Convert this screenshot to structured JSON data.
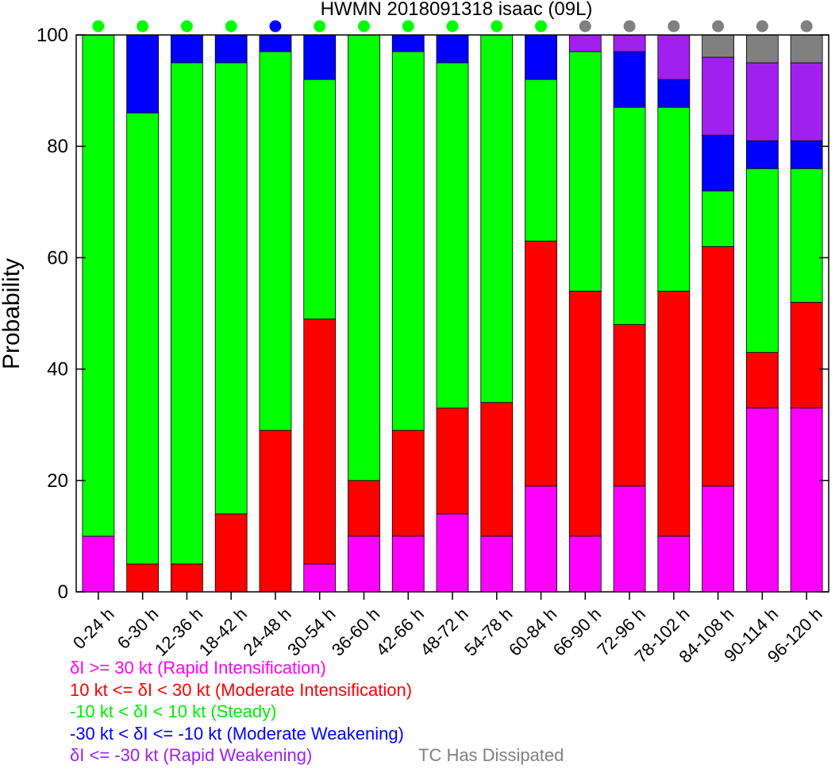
{
  "chart_data": {
    "type": "bar",
    "stacked": true,
    "title": "HWMN 2018091318 isaac (09L)",
    "xlabel": "",
    "ylabel": "Probability",
    "ylim": [
      0,
      100
    ],
    "yticks": [
      0,
      20,
      40,
      60,
      80,
      100
    ],
    "grid": false,
    "categories": [
      "0-24 h",
      "6-30 h",
      "12-36 h",
      "18-42 h",
      "24-48 h",
      "30-54 h",
      "36-60 h",
      "42-66 h",
      "48-72 h",
      "54-78 h",
      "60-84 h",
      "66-90 h",
      "72-96 h",
      "78-102 h",
      "84-108 h",
      "90-114 h",
      "96-120 h"
    ],
    "series": [
      {
        "key": "ri",
        "name": "δI >= 30 kt (Rapid Intensification)",
        "color": "#ff00ff",
        "values": [
          10,
          0,
          0,
          0,
          0,
          5,
          10,
          10,
          14,
          10,
          19,
          10,
          19,
          10,
          19,
          33,
          33
        ]
      },
      {
        "key": "mi",
        "name": "10 kt <= δI < 30 kt (Moderate Intensification)",
        "color": "#ff0000",
        "values": [
          0,
          5,
          5,
          14,
          29,
          44,
          10,
          19,
          19,
          24,
          44,
          44,
          29,
          44,
          43,
          10,
          19
        ]
      },
      {
        "key": "st",
        "name": "-10 kt < δI < 10 kt (Steady)",
        "color": "#00ff00",
        "values": [
          90,
          81,
          90,
          81,
          68,
          43,
          80,
          68,
          62,
          66,
          29,
          43,
          39,
          33,
          10,
          33,
          24
        ]
      },
      {
        "key": "mw",
        "name": "-30 kt < δI <= -10 kt (Moderate Weakening)",
        "color": "#0000ff",
        "values": [
          0,
          14,
          5,
          5,
          3,
          8,
          0,
          3,
          5,
          0,
          8,
          0,
          10,
          5,
          10,
          5,
          5
        ]
      },
      {
        "key": "rw",
        "name": "δI <= -30 kt (Rapid Weakening)",
        "color": "#a020f0",
        "values": [
          0,
          0,
          0,
          0,
          0,
          0,
          0,
          0,
          0,
          0,
          0,
          3,
          3,
          8,
          14,
          14,
          14
        ]
      },
      {
        "key": "ds",
        "name": "TC Has Dissipated",
        "color": "#808080",
        "values": [
          0,
          0,
          0,
          0,
          0,
          0,
          0,
          0,
          0,
          0,
          0,
          0,
          0,
          0,
          4,
          5,
          5
        ]
      }
    ],
    "dots": [
      "st",
      "st",
      "st",
      "st",
      "mw",
      "st",
      "st",
      "st",
      "st",
      "st",
      "st",
      "ds",
      "ds",
      "ds",
      "ds",
      "ds",
      "ds"
    ],
    "legend_placement": "bottom-left"
  }
}
